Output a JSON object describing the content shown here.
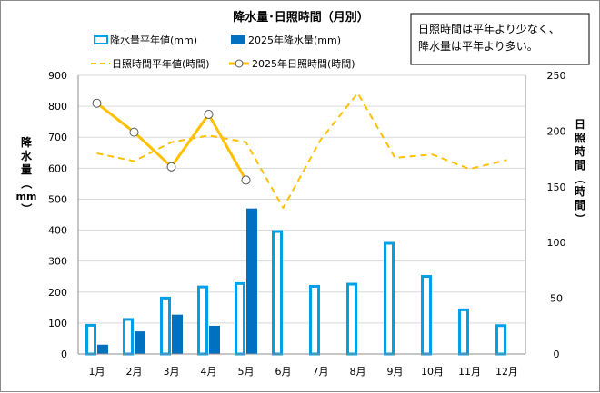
{
  "chart_data": {
    "type": "bar",
    "title": "降水量･日照時間（月別）",
    "annotation": [
      "日照時間は平年より少なく、",
      "降水量は平年より多い。"
    ],
    "categories": [
      "1月",
      "2月",
      "3月",
      "4月",
      "5月",
      "6月",
      "7月",
      "8月",
      "9月",
      "10月",
      "11月",
      "12月"
    ],
    "ylabel_left": [
      "降",
      "水",
      "量",
      "（",
      "mm",
      "）"
    ],
    "ylabel_right": [
      "日",
      "照",
      "時",
      "間",
      "（",
      "時",
      "間",
      "）"
    ],
    "ylim_left": [
      0,
      900
    ],
    "yticks_left": [
      "0",
      "100",
      "200",
      "300",
      "400",
      "500",
      "600",
      "700",
      "800",
      "900"
    ],
    "ylim_right": [
      0,
      250
    ],
    "yticks_right": [
      "0",
      "50",
      "100",
      "150",
      "200",
      "250"
    ],
    "grid": true,
    "legend_position": "top",
    "series": [
      {
        "name": "降水量平年値(mm)",
        "kind": "bar",
        "axis": "left",
        "color": "#00a0e6",
        "values": [
          97,
          116,
          185,
          221,
          232,
          400,
          223,
          230,
          362,
          255,
          147,
          96
        ]
      },
      {
        "name": "2025年降水量(mm)",
        "kind": "bar",
        "axis": "left",
        "color": "#0070c0",
        "values": [
          30,
          73,
          127,
          91,
          470,
          null,
          null,
          null,
          null,
          null,
          null,
          null
        ]
      },
      {
        "name": "日照時間平年値(時間)",
        "kind": "line",
        "axis": "right",
        "color": "#ffc000",
        "dashed": true,
        "values": [
          180,
          173,
          190,
          196,
          190,
          131,
          192,
          234,
          176,
          179,
          166,
          174
        ]
      },
      {
        "name": "2025年日照時間(時間)",
        "kind": "line",
        "axis": "right",
        "color": "#ffc000",
        "markers": true,
        "values": [
          225,
          199,
          168,
          215,
          156,
          null,
          null,
          null,
          null,
          null,
          null,
          null
        ]
      }
    ]
  }
}
